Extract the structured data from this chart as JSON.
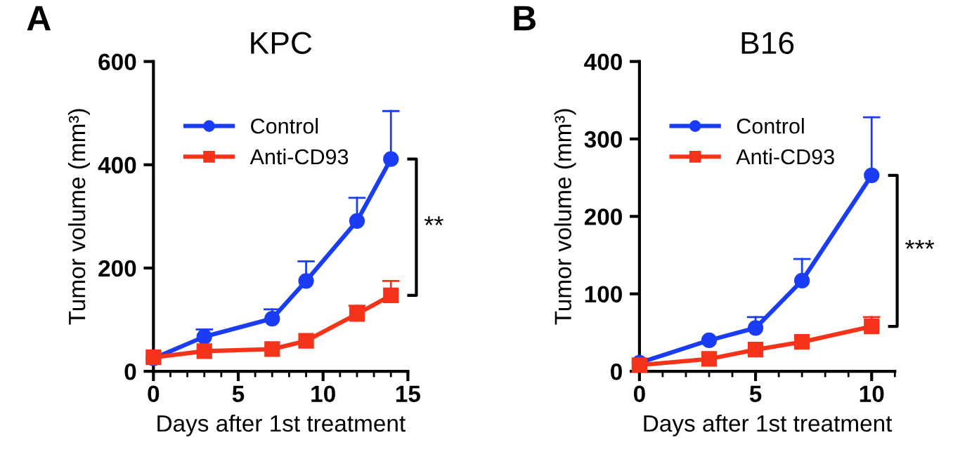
{
  "chart_data": [
    {
      "type": "line",
      "title": "KPC",
      "xlabel": "Days after 1st treatment",
      "ylabel": "Tumor volume (mm³)",
      "xlim": [
        0,
        15
      ],
      "xticks": [
        0,
        5,
        10,
        15
      ],
      "ylim": [
        0,
        600
      ],
      "yticks": [
        0,
        200,
        400,
        600
      ],
      "grid": false,
      "legend": "top left",
      "annotations": [
        "A",
        "**"
      ],
      "series": [
        {
          "name": "Control",
          "color": "#1a3cf5",
          "marker": "circle",
          "x": [
            0,
            3,
            7,
            9,
            12,
            14
          ],
          "values": [
            25,
            67,
            102,
            175,
            291,
            411
          ],
          "errors": [
            null,
            [
              67,
              81
            ],
            [
              102,
              120
            ],
            [
              175,
              213
            ],
            [
              291,
              336
            ],
            [
              411,
              504
            ]
          ]
        },
        {
          "name": "Anti-CD93",
          "color": "#f5331a",
          "marker": "square",
          "x": [
            0,
            3,
            7,
            9,
            12,
            14
          ],
          "values": [
            27,
            39,
            43,
            59,
            111,
            147
          ],
          "errors": [
            null,
            null,
            null,
            null,
            [
              111,
              127
            ],
            [
              147,
              175
            ]
          ]
        }
      ]
    },
    {
      "type": "line",
      "title": "B16",
      "xlabel": "Days after 1st treatment",
      "ylabel": "Tumor volume (mm³)",
      "xlim": [
        0,
        11
      ],
      "xticks": [
        0,
        5,
        10
      ],
      "ylim": [
        0,
        400
      ],
      "yticks": [
        0,
        100,
        200,
        300,
        400
      ],
      "grid": false,
      "legend": "top left",
      "annotations": [
        "B",
        "***"
      ],
      "series": [
        {
          "name": "Control",
          "color": "#1a3cf5",
          "marker": "circle",
          "x": [
            0,
            3,
            5,
            7,
            10
          ],
          "values": [
            11,
            40,
            56,
            117,
            253
          ],
          "errors": [
            null,
            null,
            [
              56,
              70
            ],
            [
              117,
              145
            ],
            [
              253,
              328
            ]
          ]
        },
        {
          "name": "Anti-CD93",
          "color": "#f5331a",
          "marker": "square",
          "x": [
            0,
            3,
            5,
            7,
            10
          ],
          "values": [
            8,
            16,
            28,
            38,
            58
          ],
          "errors": [
            null,
            null,
            null,
            null,
            [
              58,
              70
            ]
          ]
        }
      ]
    }
  ]
}
